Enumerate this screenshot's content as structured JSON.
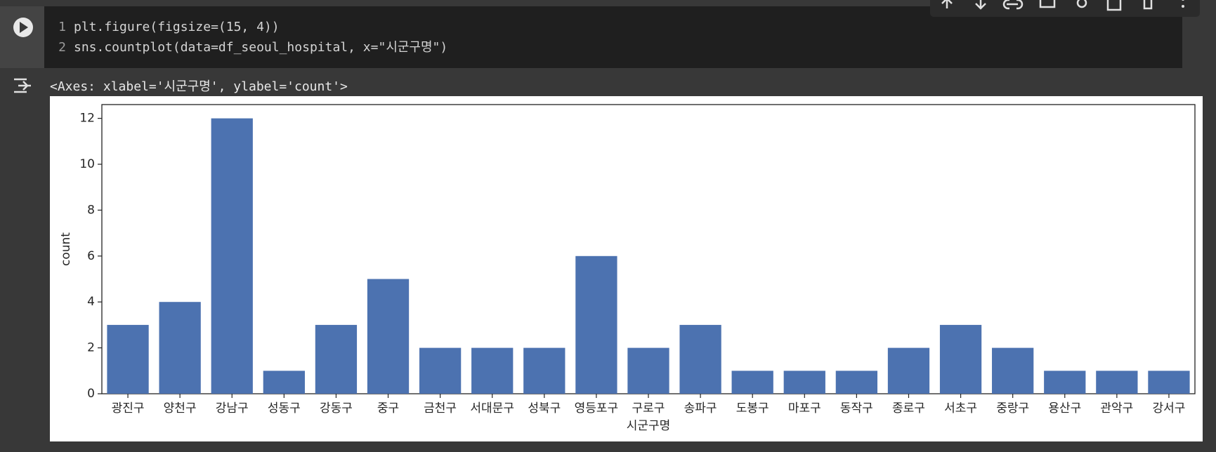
{
  "code": {
    "lines": [
      {
        "number": 1,
        "text": "plt.figure(figsize=(15, 4))"
      },
      {
        "number": 2,
        "text": "sns.countplot(data=df_seoul_hospital, x=\"시군구명\")"
      }
    ]
  },
  "output": {
    "text": "<Axes: xlabel='시군구명', ylabel='count'>"
  },
  "chart_data": {
    "type": "bar",
    "xlabel": "시군구명",
    "ylabel": "count",
    "categories": [
      "광진구",
      "양천구",
      "강남구",
      "성동구",
      "강동구",
      "중구",
      "금천구",
      "서대문구",
      "성북구",
      "영등포구",
      "구로구",
      "송파구",
      "도봉구",
      "마포구",
      "동작구",
      "종로구",
      "서초구",
      "중랑구",
      "용산구",
      "관악구",
      "강서구"
    ],
    "values": [
      3,
      4,
      12,
      1,
      3,
      5,
      2,
      2,
      2,
      6,
      2,
      3,
      1,
      1,
      1,
      2,
      3,
      2,
      1,
      1,
      1
    ],
    "color": "#4c72b0",
    "ylim": [
      0,
      12.6
    ],
    "yticks": [
      0,
      2,
      4,
      6,
      8,
      10,
      12
    ],
    "grid": false
  }
}
